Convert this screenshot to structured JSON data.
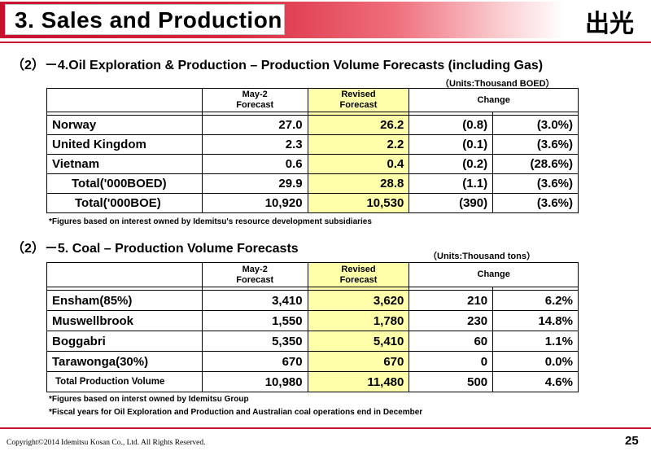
{
  "slide": {
    "title": "3. Sales and Production",
    "logo_text": "出光",
    "colors": {
      "brand_red": "#c8102e",
      "highlight_yellow": "#ffffaa"
    }
  },
  "section1": {
    "heading": "（2）－4.Oil Exploration &  Production – Production Volume Forecasts (including Gas)",
    "units": "（Units:Thousand BOED）",
    "headers": {
      "col1": "May-2\nForecast",
      "col2": "Revised\nForecast",
      "col3": "Change"
    },
    "rows": [
      {
        "name": "Norway",
        "may": "27.0",
        "revised": "26.2",
        "chg": "(0.8)",
        "pct": "(3.0%)"
      },
      {
        "name": "United Kingdom",
        "may": "2.3",
        "revised": "2.2",
        "chg": "(0.1)",
        "pct": "(3.6%)"
      },
      {
        "name": "Vietnam",
        "may": "0.6",
        "revised": "0.4",
        "chg": "(0.2)",
        "pct": "(28.6%)"
      }
    ],
    "total_boed": {
      "name": "Total('000BOED)",
      "may": "29.9",
      "revised": "28.8",
      "chg": "(1.1)",
      "pct": "(3.6%)"
    },
    "total_boe": {
      "name": "Total('000BOE)",
      "may": "10,920",
      "revised": "10,530",
      "chg": "(390)",
      "pct": "(3.6%)"
    },
    "note": "*Figures based on interest owned by Idemitsu's resource development subsidiaries"
  },
  "section2": {
    "heading": "（2）－5. Coal – Production Volume Forecasts",
    "units": "（Units:Thousand tons）",
    "headers": {
      "col1": "May-2\nForecast",
      "col2": "Revised\nForecast",
      "col3": "Change"
    },
    "rows": [
      {
        "name": "Ensham(85%)",
        "may": "3,410",
        "revised": "3,620",
        "chg": "210",
        "pct": "6.2%"
      },
      {
        "name": "Muswellbrook",
        "may": "1,550",
        "revised": "1,780",
        "chg": "230",
        "pct": "14.8%"
      },
      {
        "name": "Boggabri",
        "may": "5,350",
        "revised": "5,410",
        "chg": "60",
        "pct": "1.1%"
      },
      {
        "name": "Tarawonga(30%)",
        "may": "670",
        "revised": "670",
        "chg": "0",
        "pct": "0.0%"
      }
    ],
    "total": {
      "name": "Total Production Volume",
      "may": "10,980",
      "revised": "11,480",
      "chg": "500",
      "pct": "4.6%"
    },
    "notes": [
      "*Figures based on interst owned by Idemitsu Group",
      "*Fiscal years for Oil Exploration and Production and Australian coal operations end in December"
    ]
  },
  "footer": {
    "copyright": "Copyright©2014   Idemitsu Kosan Co., Ltd. All Rights Reserved.",
    "page_number": "25"
  }
}
